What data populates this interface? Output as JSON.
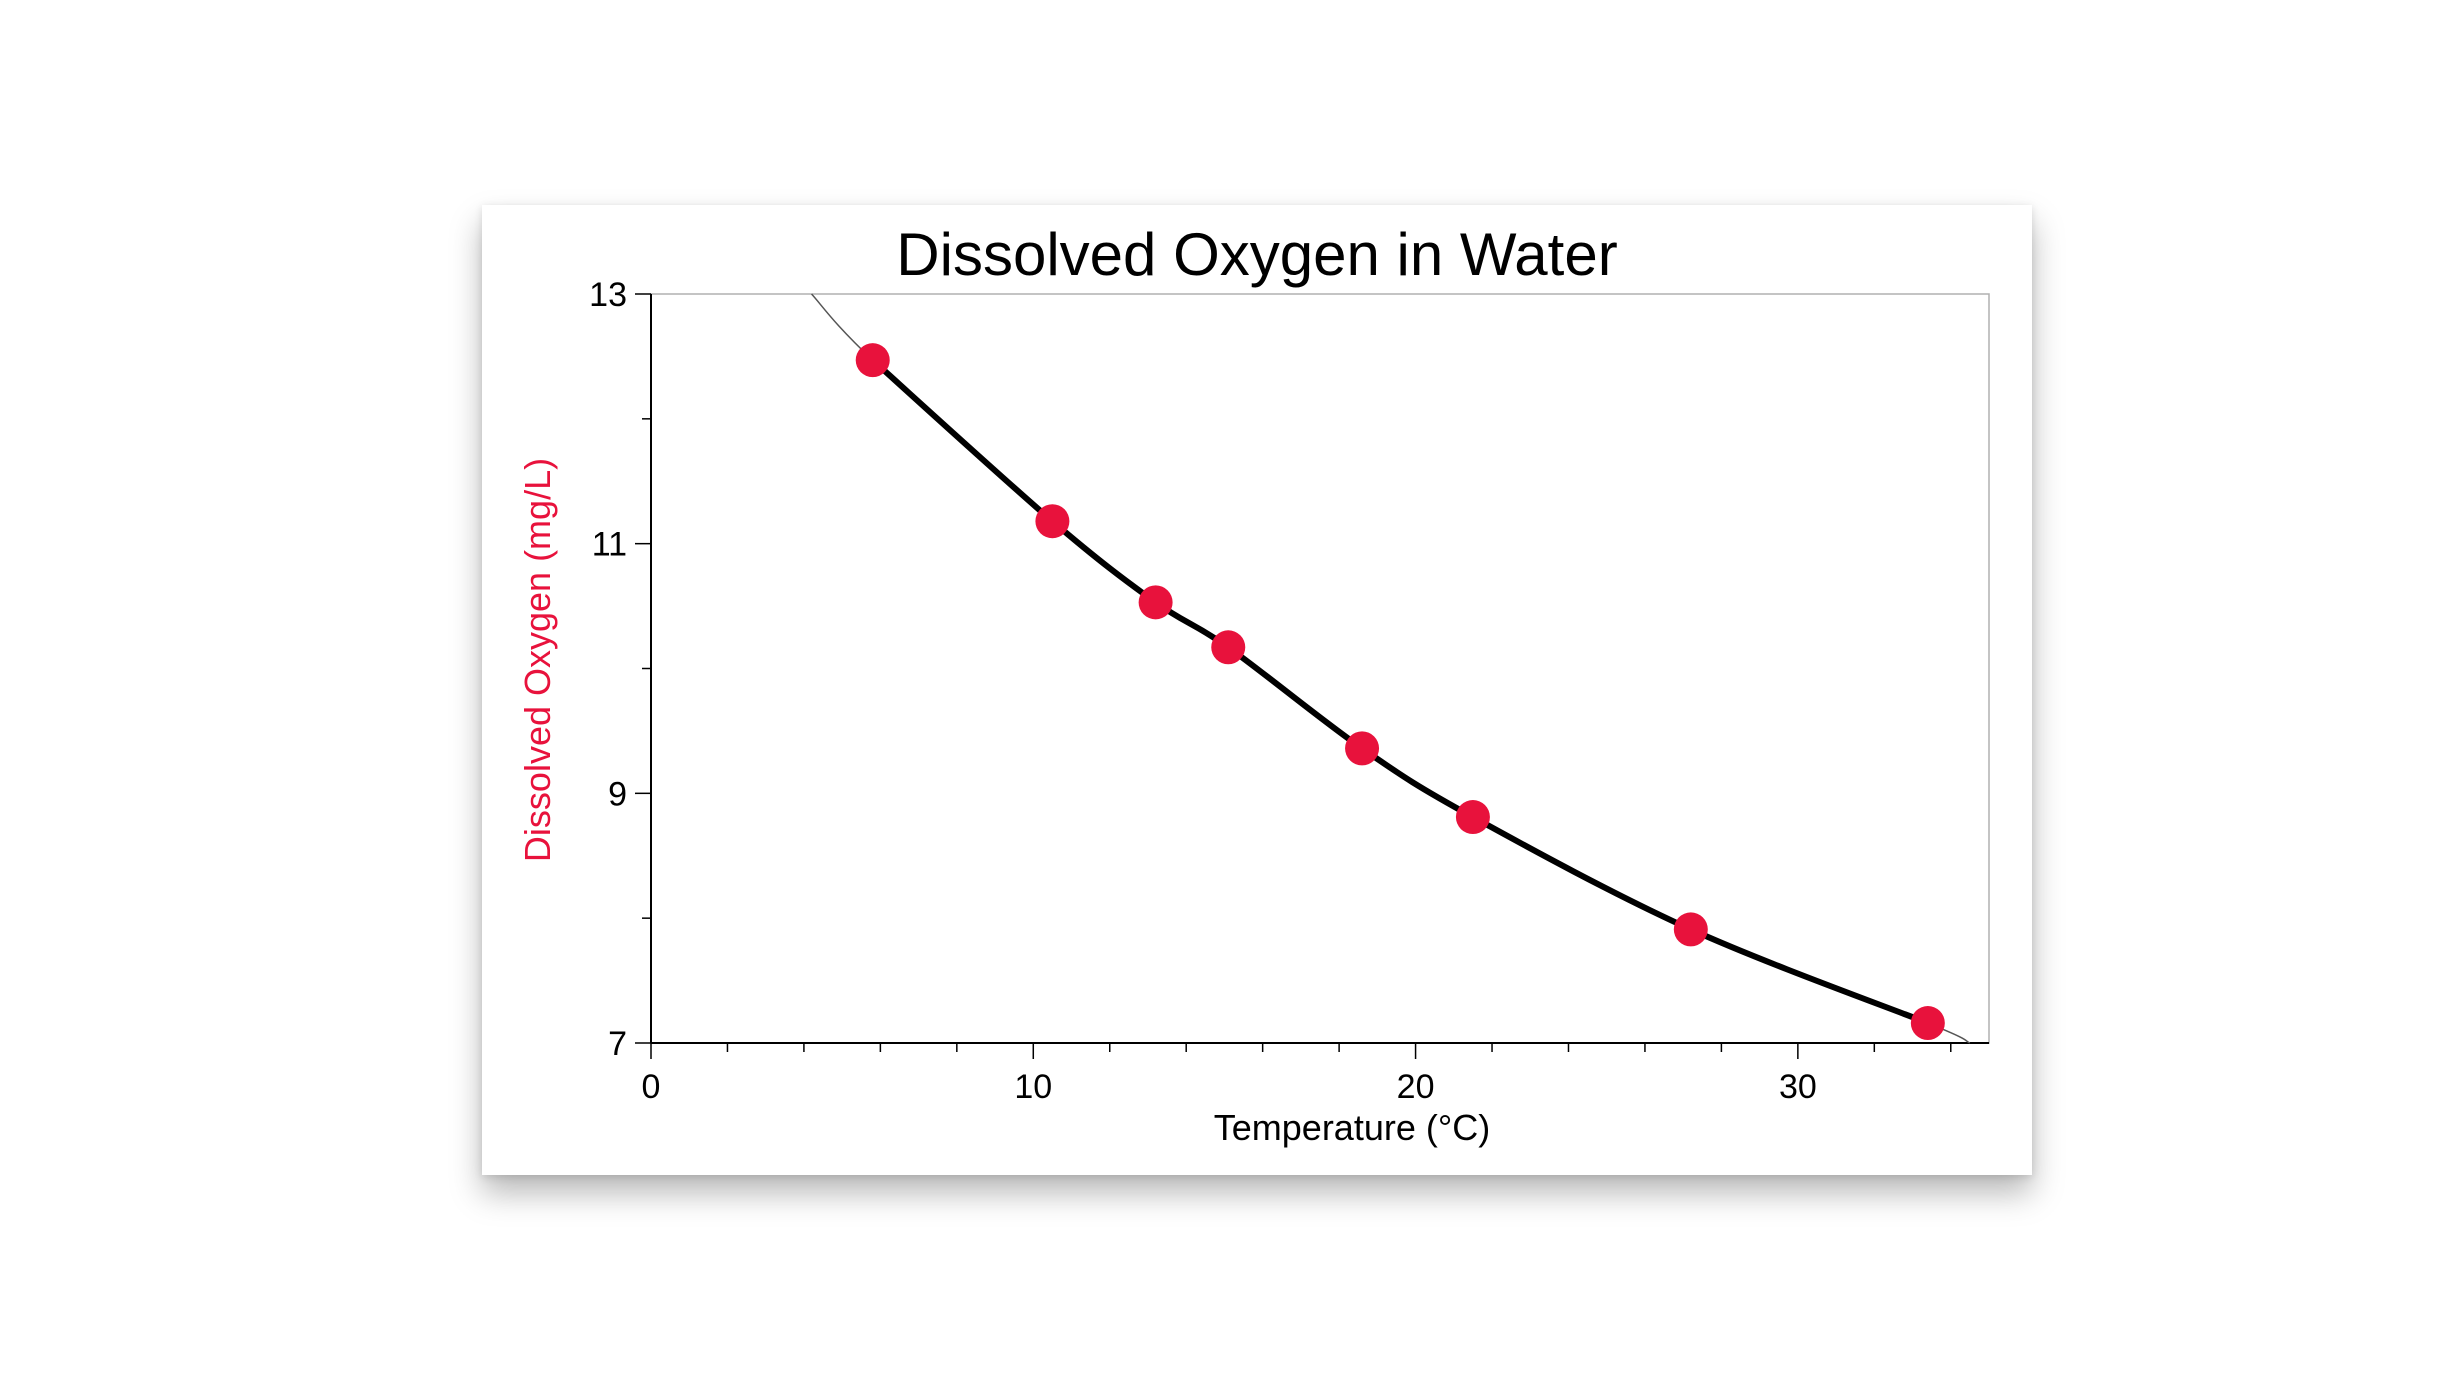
{
  "chart_data": {
    "type": "scatter",
    "title": "Dissolved Oxygen in Water",
    "xlabel": "Temperature (°C)",
    "ylabel": "Dissolved Oxygen (mg/L)",
    "xlim": [
      0,
      35
    ],
    "ylim": [
      7,
      13
    ],
    "x_ticks": [
      0,
      10,
      20,
      30
    ],
    "y_ticks": [
      7,
      9,
      11,
      13
    ],
    "x_minor_step": 2,
    "y_minor_step": 1,
    "grid": false,
    "colors": {
      "points": "#e8123c",
      "ylabel": "#e8123c",
      "fit": "#000000",
      "extension": "#555555",
      "frame": "#b0b0b0"
    },
    "series": [
      {
        "x": [
          5.8,
          10.5,
          13.2,
          15.1,
          18.6,
          21.5,
          27.2,
          33.4
        ],
        "y": [
          12.47,
          11.18,
          10.53,
          10.17,
          9.36,
          8.81,
          7.91,
          7.16
        ]
      }
    ],
    "fit": {
      "type": "curve",
      "x": [
        4.2,
        5.8,
        10.5,
        13.2,
        15.1,
        18.6,
        21.5,
        27.2,
        33.4,
        34.5
      ],
      "y": [
        13.0,
        12.47,
        11.18,
        10.53,
        10.17,
        9.36,
        8.81,
        7.91,
        7.16,
        7.0
      ]
    }
  }
}
